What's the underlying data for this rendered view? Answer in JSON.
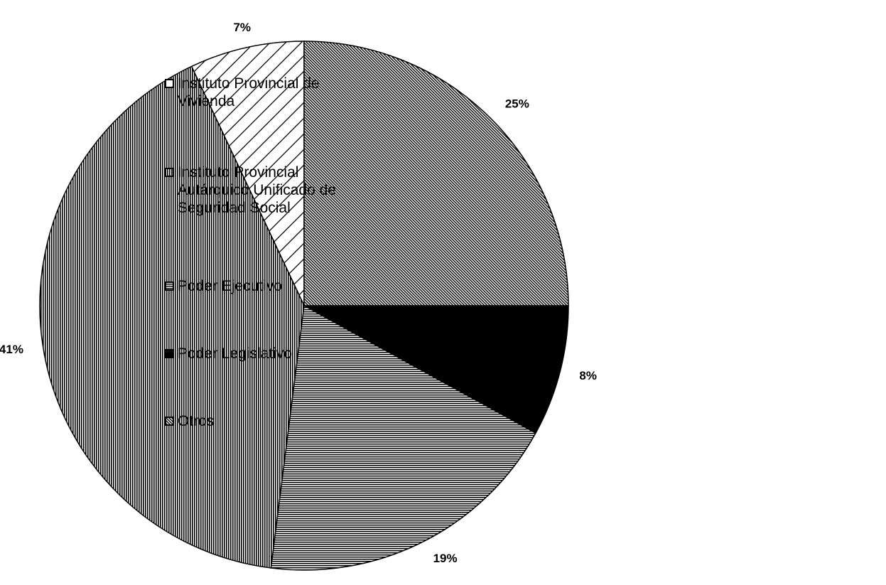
{
  "chart_data": {
    "type": "pie",
    "categories": [
      "Instituto Provincial de Vivienda",
      "Instituto Provincial Autárquico Unificado de Seguridad Social",
      "Poder Ejecutivo",
      "Poder Legislativo",
      "Otros"
    ],
    "values": [
      7,
      41,
      19,
      8,
      25
    ],
    "value_labels": [
      "7%",
      "41%",
      "19%",
      "8%",
      "25%"
    ],
    "legend": "right"
  }
}
